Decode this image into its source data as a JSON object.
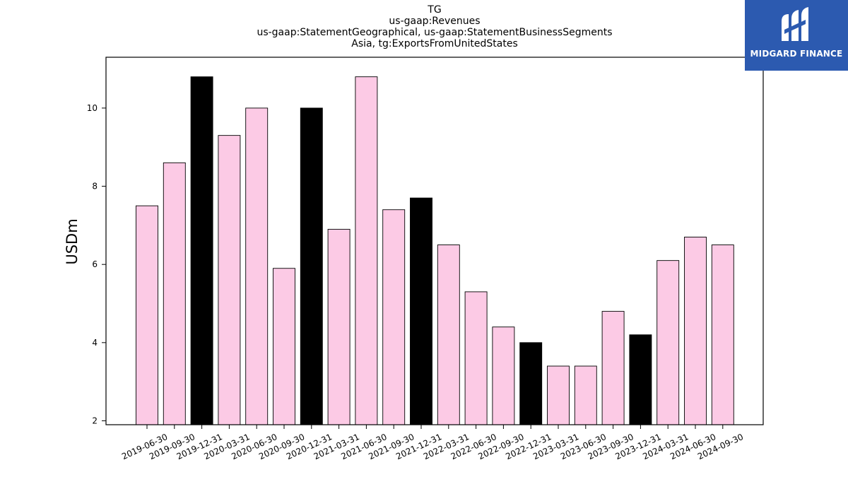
{
  "titles": {
    "line1": "TG",
    "line2": "us-gaap:Revenues",
    "line3": "us-gaap:StatementGeographical, us-gaap:StatementBusinessSegments",
    "line4": "Asia, tg:ExportsFromUnitedStates"
  },
  "logo": {
    "text": "MIDGARD FINANCE",
    "icon": "midgard-logo-icon",
    "color": "#2c5ab0"
  },
  "chart_data": {
    "type": "bar",
    "categories": [
      "2019-06-30",
      "2019-09-30",
      "2019-12-31",
      "2020-03-31",
      "2020-06-30",
      "2020-09-30",
      "2020-12-31",
      "2021-03-31",
      "2021-06-30",
      "2021-09-30",
      "2021-12-31",
      "2022-03-31",
      "2022-06-30",
      "2022-09-30",
      "2022-12-31",
      "2023-03-31",
      "2023-06-30",
      "2023-09-30",
      "2023-12-31",
      "2024-03-31",
      "2024-06-30",
      "2024-09-30"
    ],
    "values": [
      7.5,
      8.6,
      10.8,
      9.3,
      10.0,
      5.9,
      10.0,
      6.9,
      10.8,
      7.4,
      7.7,
      6.5,
      5.3,
      4.4,
      4.0,
      3.4,
      3.4,
      4.8,
      4.2,
      6.1,
      6.7,
      6.5
    ],
    "highlight": [
      false,
      false,
      true,
      false,
      false,
      false,
      true,
      false,
      false,
      false,
      true,
      false,
      false,
      false,
      true,
      false,
      false,
      false,
      true,
      false,
      false,
      false
    ],
    "ylabel": "USDm",
    "xlabel": "",
    "ylim": [
      1.9,
      11.3
    ],
    "yticks": [
      2,
      4,
      6,
      8,
      10
    ],
    "colors": {
      "bar": "#fccae5",
      "highlight": "#000000",
      "edge": "#000000"
    },
    "grid": false
  }
}
